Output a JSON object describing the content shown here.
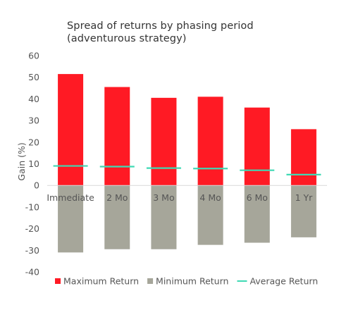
{
  "chart_data": {
    "type": "bar",
    "title_lines": [
      "Spread of returns by phasing period",
      "(adventurous strategy)"
    ],
    "xlabel": "",
    "ylabel": "Gain (%)",
    "ylim": [
      -40,
      60
    ],
    "yticks": [
      60,
      50,
      40,
      30,
      20,
      10,
      0,
      -10,
      -20,
      -30,
      -40
    ],
    "grid": false,
    "legend_position": "bottom",
    "categories": [
      "Immediate",
      "2 Mo",
      "3 Mo",
      "4 Mo",
      "6 Mo",
      "1 Yr"
    ],
    "series": [
      {
        "name": "Maximum Return",
        "kind": "bar",
        "color": "#ff1a24",
        "values": [
          51.5,
          45.5,
          40.5,
          41,
          36,
          26
        ]
      },
      {
        "name": "Minimum Return",
        "kind": "bar",
        "color": "#a6a69a",
        "values": [
          -31,
          -29.5,
          -29.5,
          -27.5,
          -26.5,
          -24
        ]
      },
      {
        "name": "Average Return",
        "kind": "line-marker",
        "color": "#3fd9b4",
        "values": [
          9,
          8.7,
          8,
          7.8,
          7,
          5
        ]
      }
    ]
  }
}
